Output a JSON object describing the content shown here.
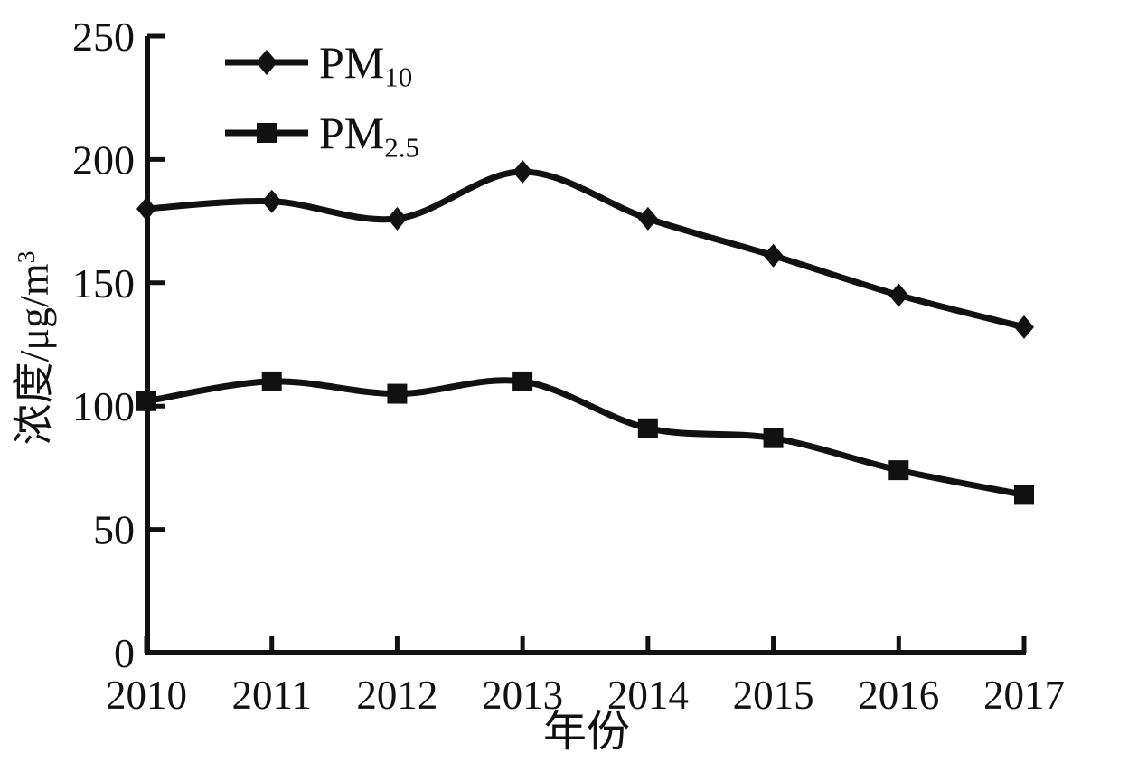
{
  "figure": {
    "background": "#ffffff",
    "ink": "#111111"
  },
  "y_axis": {
    "title_main": "浓度/μg/m",
    "title_sup": "3"
  },
  "x_axis": {
    "title": "年份"
  },
  "legend": {
    "items": [
      {
        "main": "PM",
        "sub": "10",
        "marker": "diamond"
      },
      {
        "main": "PM",
        "sub": "2.5",
        "marker": "square"
      }
    ]
  },
  "chart_data": {
    "type": "line",
    "title": "",
    "xlabel": "年份",
    "ylabel": "浓度/μg/m³",
    "categories": [
      "2010",
      "2011",
      "2012",
      "2013",
      "2014",
      "2015",
      "2016",
      "2017"
    ],
    "series": [
      {
        "name": "PM10",
        "marker": "diamond",
        "color": "#111111",
        "values": [
          180,
          183,
          176,
          195,
          176,
          161,
          145,
          132
        ]
      },
      {
        "name": "PM2.5",
        "marker": "square",
        "color": "#111111",
        "values": [
          102,
          110,
          105,
          110,
          91,
          87,
          74,
          64
        ]
      }
    ],
    "ylim": [
      0,
      250
    ],
    "yticks": [
      0,
      50,
      100,
      150,
      200,
      250
    ],
    "grid": false,
    "legend_position": "top-left",
    "line_color": "#111111"
  }
}
